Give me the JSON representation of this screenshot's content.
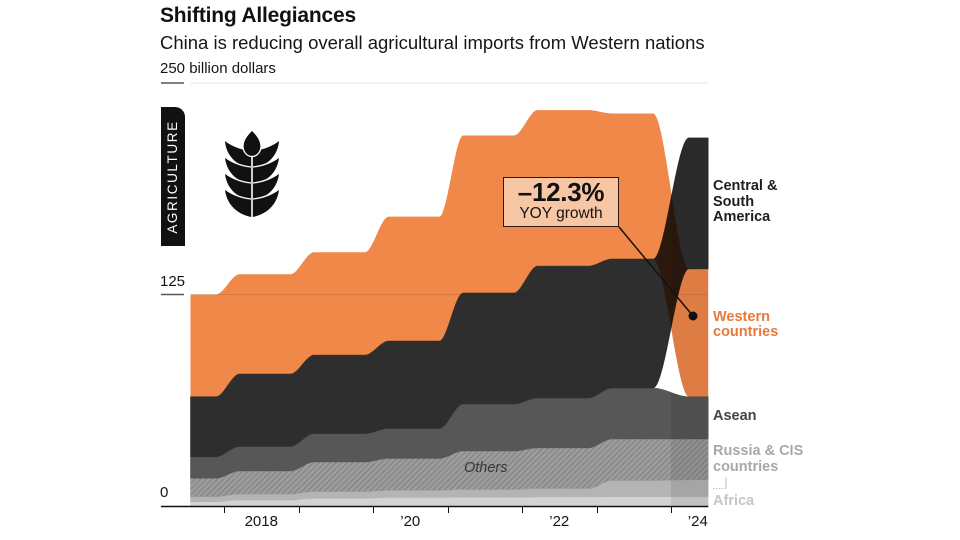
{
  "tag": {
    "label": "AGRICULTURE",
    "icon": "wheat-icon"
  },
  "chart_data": {
    "type": "area",
    "title": "Shifting Allegiances",
    "subtitle": "China is reducing overall agricultural imports from Western nations",
    "xlabel": "",
    "ylabel": "billion dollars",
    "ylim": [
      0,
      250
    ],
    "xlim": [
      2017.55,
      2024.5
    ],
    "grid": true,
    "yticks": [
      {
        "value": 250,
        "label": "250 billion dollars"
      },
      {
        "value": 125,
        "label": "125"
      },
      {
        "value": 0,
        "label": "0"
      }
    ],
    "xticks": [
      2018,
      2019,
      2020,
      2021,
      2022,
      2023,
      2024
    ],
    "xtick_labels": [
      {
        "year": 2018,
        "label": "2018"
      },
      {
        "year": 2020,
        "label": "’20"
      },
      {
        "year": 2022,
        "label": "’22"
      },
      {
        "year": 2024,
        "label": "’24"
      }
    ],
    "x": [
      2017,
      2018,
      2019,
      2020,
      2021,
      2022,
      2023,
      2024
    ],
    "series": [
      {
        "name": "Africa",
        "color": "#d3d3d3",
        "label_color": "#c6c6c6",
        "values": [
          2.5,
          3.5,
          4.5,
          5.0,
          5.2,
          5.3,
          5.5,
          5.4
        ]
      },
      {
        "name": "Russia & CIS countries",
        "color": "#b4b4b4",
        "label_color": "#a8a8a8",
        "values": [
          3.0,
          3.5,
          4.0,
          4.2,
          4.5,
          5.0,
          9.5,
          10.0
        ]
      },
      {
        "name": "Others",
        "color": "#9d9d9d",
        "hatch_color": "#858585",
        "label_color": "#363636",
        "values": [
          10.9,
          13.7,
          17.5,
          18.9,
          22.8,
          24.0,
          24.6,
          24.2
        ]
      },
      {
        "name": "Asean",
        "color": "#575757",
        "label_color": "#444444",
        "values": [
          12.7,
          14.5,
          16.8,
          17.7,
          27.8,
          29.5,
          30.1,
          25.0
        ]
      },
      {
        "name": "Central & South America",
        "color": "#2e2e2e",
        "label_color": "#1e1e1e",
        "values": [
          35.5,
          42.8,
          46.4,
          51.7,
          65.6,
          78.0,
          76.3,
          77.5
        ]
      },
      {
        "name": "Western countries",
        "color": "#f0884a",
        "label_color": "#e8793a",
        "values": [
          60.4,
          59.0,
          60.8,
          73.5,
          93.1,
          92.2,
          86.0,
          75.5
        ]
      }
    ],
    "stack_order": {
      "default": [
        "Africa",
        "Russia & CIS countries",
        "Others",
        "Asean",
        "Central & South America",
        "Western countries"
      ],
      "2024": [
        "Africa",
        "Russia & CIS countries",
        "Others",
        "Asean",
        "Western countries",
        "Central & South America"
      ]
    },
    "partial_period_start": 2024,
    "legend_placement": "right",
    "annotation": {
      "value": "–12.3%",
      "text": "YOY growth",
      "series": "Western countries",
      "year": 2024
    }
  }
}
